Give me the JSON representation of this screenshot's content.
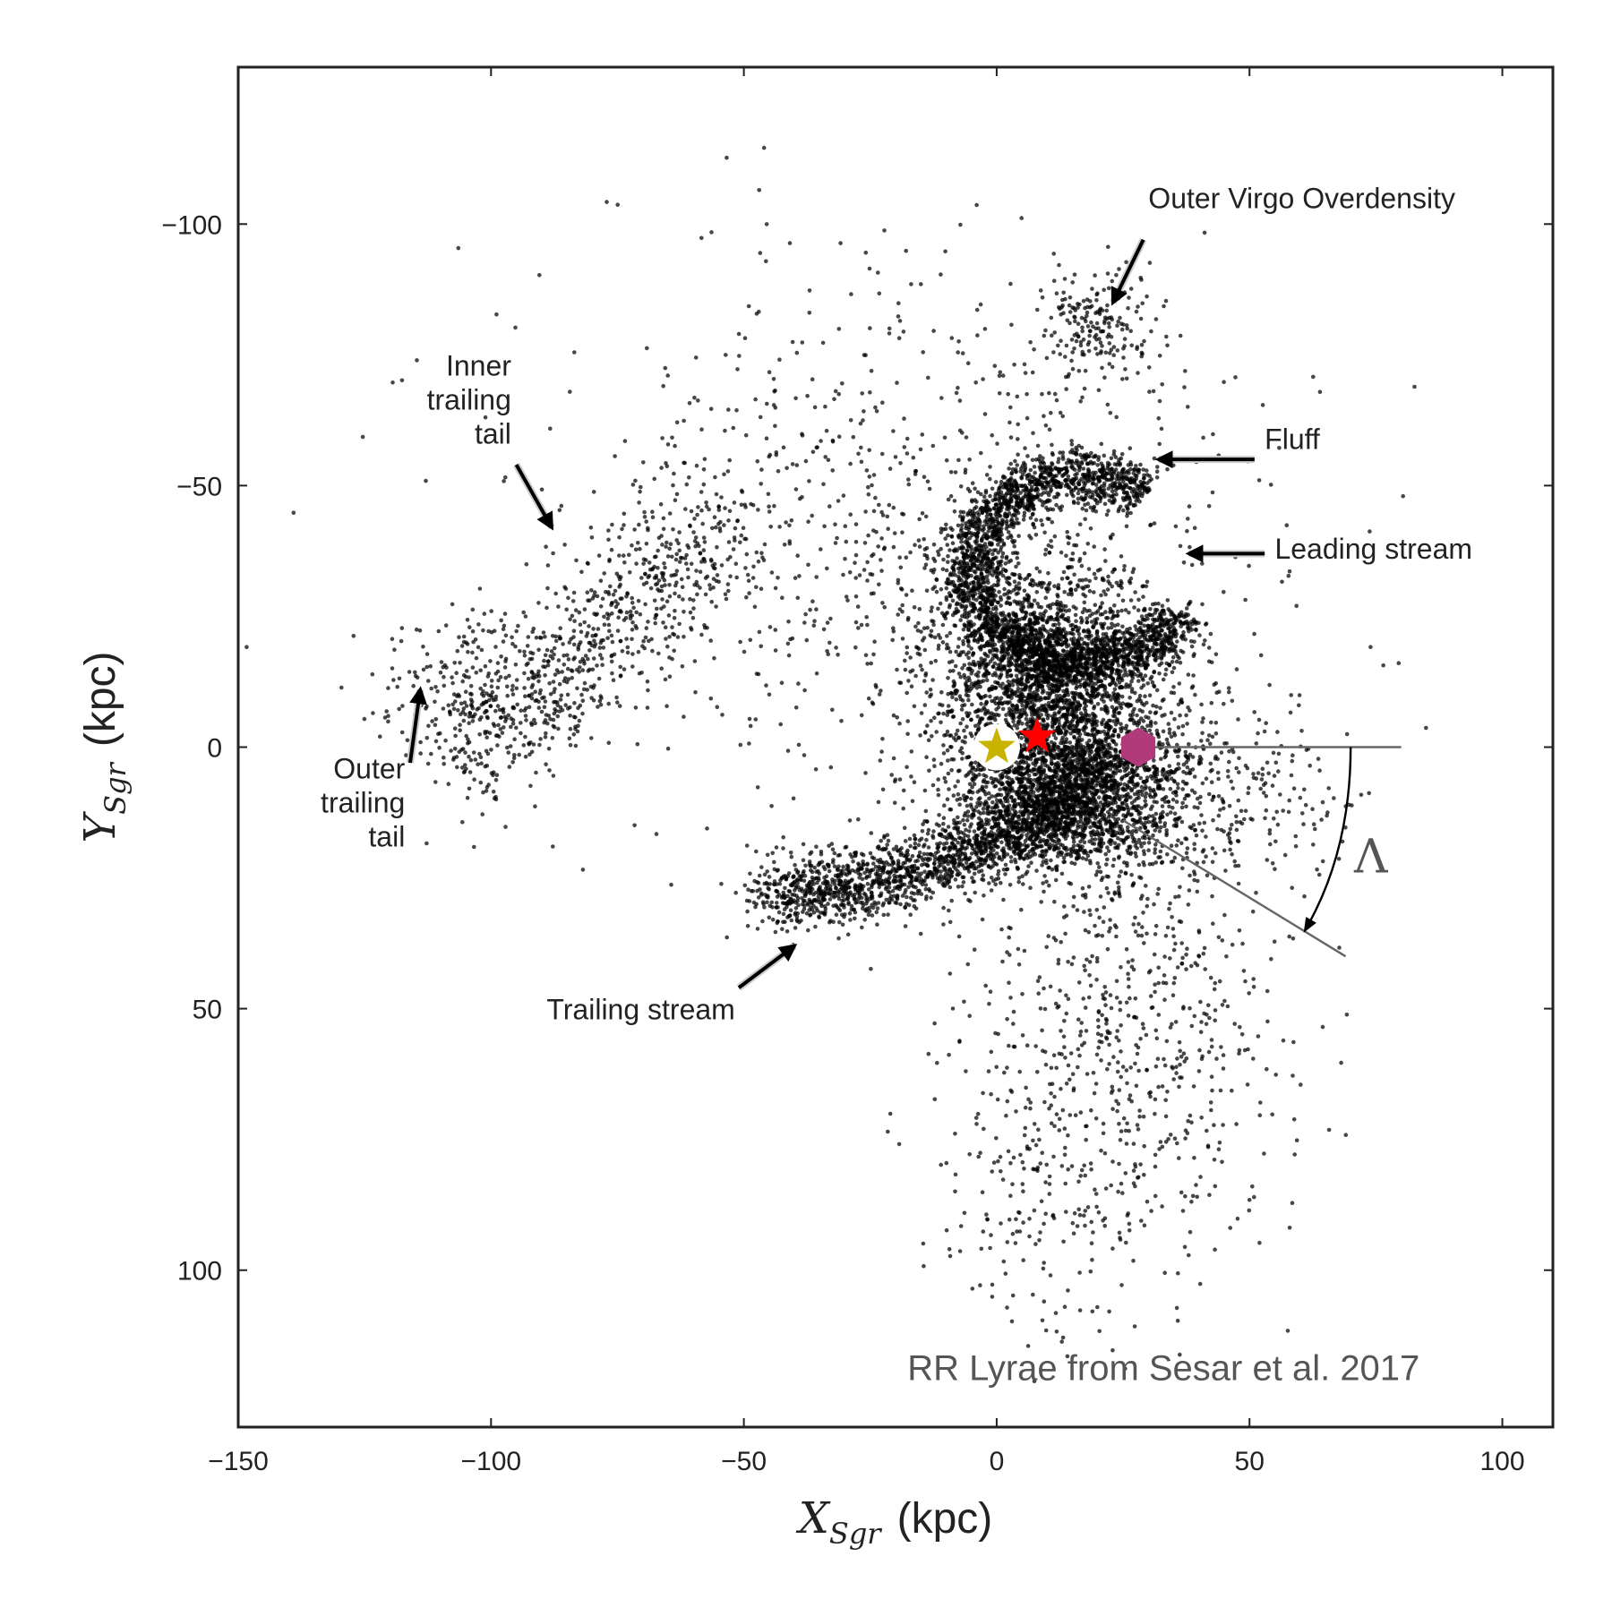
{
  "chart_data": {
    "type": "scatter",
    "title": "",
    "xlabel": {
      "symbol": "X",
      "subscript": "Sgr",
      "unit": "(kpc)"
    },
    "ylabel": {
      "symbol": "Y",
      "subscript": "Sgr",
      "unit": "(kpc)"
    },
    "xlim": [
      -150,
      110
    ],
    "ylim": [
      130,
      -130
    ],
    "y_axis_inverted": true,
    "x_ticks": [
      -150,
      -100,
      -50,
      0,
      50,
      100
    ],
    "y_ticks": [
      -100,
      -50,
      0,
      50,
      100
    ],
    "x_tick_labels": [
      "−150",
      "−100",
      "−50",
      "0",
      "50",
      "100"
    ],
    "y_tick_labels": [
      "−100",
      "−50",
      "0",
      "50",
      "100"
    ],
    "grid": false,
    "point_color": "#000000",
    "credit_text": "RR Lyrae from Sesar et al. 2017",
    "markers": [
      {
        "name": "Sun",
        "shape": "star",
        "color": "#c8b400",
        "halo": "#ffffff",
        "x": 0,
        "y": 0
      },
      {
        "name": "Galactic center",
        "shape": "star",
        "color": "#ff0000",
        "x": 8,
        "y": -2
      },
      {
        "name": "Sgr dwarf",
        "shape": "hexagon",
        "color": "#b03a7a",
        "x": 28,
        "y": 0
      }
    ],
    "angle_label": "Λ",
    "annotations": [
      {
        "id": "outer-virgo",
        "lines": [
          "Outer Virgo Overdensity"
        ],
        "text_x": 30,
        "text_y": -103,
        "anchor": "start",
        "arrow_from": [
          29,
          -97
        ],
        "arrow_to": [
          23,
          -85
        ]
      },
      {
        "id": "inner-trailing",
        "lines": [
          "Inner",
          "trailing",
          "tail"
        ],
        "text_x": -96,
        "text_y": -71,
        "anchor": "end",
        "arrow_from": [
          -95,
          -54
        ],
        "arrow_to": [
          -88,
          -42
        ]
      },
      {
        "id": "fluff",
        "lines": [
          "Fluff"
        ],
        "text_x": 53,
        "text_y": -57,
        "anchor": "start",
        "arrow_from": [
          51,
          -55
        ],
        "arrow_to": [
          32,
          -55
        ]
      },
      {
        "id": "leading-stream",
        "lines": [
          "Leading stream"
        ],
        "text_x": 55,
        "text_y": -36,
        "anchor": "start",
        "arrow_from": [
          53,
          -37
        ],
        "arrow_to": [
          38,
          -37
        ]
      },
      {
        "id": "outer-trailing",
        "lines": [
          "Outer",
          "trailing",
          "tail"
        ],
        "text_x": -117,
        "text_y": 6,
        "anchor": "end",
        "arrow_from": [
          -116,
          3
        ],
        "arrow_to": [
          -114,
          -11
        ]
      },
      {
        "id": "trailing-stream",
        "lines": [
          "Trailing stream"
        ],
        "text_x": -89,
        "text_y": 52,
        "anchor": "start",
        "arrow_from": [
          -51,
          46
        ],
        "arrow_to": [
          -40,
          38
        ]
      }
    ]
  }
}
